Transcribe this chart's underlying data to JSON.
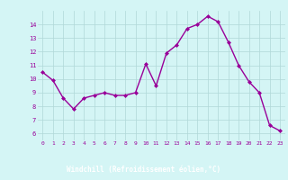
{
  "x": [
    0,
    1,
    2,
    3,
    4,
    5,
    6,
    7,
    8,
    9,
    10,
    11,
    12,
    13,
    14,
    15,
    16,
    17,
    18,
    19,
    20,
    21,
    22,
    23
  ],
  "y": [
    10.5,
    9.9,
    8.6,
    7.8,
    8.6,
    8.8,
    9.0,
    8.8,
    8.8,
    9.0,
    11.1,
    9.5,
    11.9,
    12.5,
    13.7,
    14.0,
    14.6,
    14.2,
    12.7,
    11.0,
    9.8,
    9.0,
    6.6,
    6.2
  ],
  "line_color": "#990099",
  "marker": "D",
  "marker_size": 2.0,
  "bg_color": "#d4f5f5",
  "grid_color": "#b0d8d8",
  "xlabel": "Windchill (Refroidissement éolien,°C)",
  "xlabel_color": "#ffffff",
  "xlabel_bg": "#6666aa",
  "tick_color": "#990099",
  "ylim": [
    5.5,
    15.0
  ],
  "xlim": [
    -0.5,
    23.5
  ],
  "yticks": [
    6,
    7,
    8,
    9,
    10,
    11,
    12,
    13,
    14
  ],
  "xticks": [
    0,
    1,
    2,
    3,
    4,
    5,
    6,
    7,
    8,
    9,
    10,
    11,
    12,
    13,
    14,
    15,
    16,
    17,
    18,
    19,
    20,
    21,
    22,
    23
  ],
  "line_width": 1.0
}
